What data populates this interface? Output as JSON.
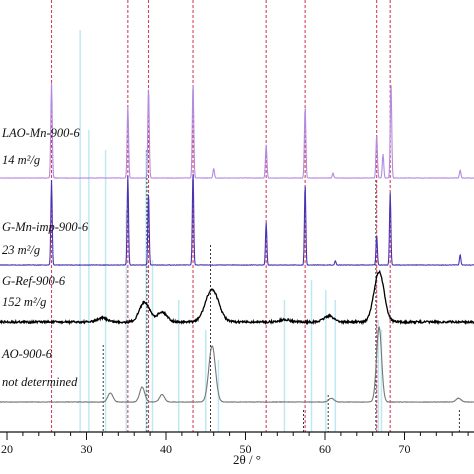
{
  "chart_data": {
    "type": "line",
    "xlabel": "2θ / °",
    "ylabel": "",
    "xlim": [
      20,
      80
    ],
    "x_ticks": [
      "20",
      "30",
      "40",
      "50",
      "60",
      "70"
    ],
    "grid": false,
    "colors": {
      "red_ref": "#d3415f",
      "cyan_ref": "#bfe9f2",
      "black_ref": "#222222",
      "laomn": "#b48ae0",
      "mnimp": "#4b32b4",
      "ref": "#000000",
      "lao": "#777777"
    },
    "reference_lines": {
      "red_dashed": [
        25.6,
        35.2,
        37.8,
        43.4,
        52.6,
        57.5,
        66.5,
        68.2
      ],
      "cyan": [
        29.2,
        30.3,
        32.4,
        35.0,
        37.5,
        38.3,
        41.6,
        45.0,
        46.6,
        54.9,
        58.3,
        60.1,
        61.3,
        66.7,
        67.1
      ],
      "black_dashed": [
        32.1,
        37.6,
        45.6,
        57.3,
        60.4,
        66.4,
        76.9
      ]
    },
    "series": [
      {
        "label_line1": "LAO-Mn-900-6",
        "label_line2": "14 m²/g",
        "peaks": [
          [
            25.6,
            1.0
          ],
          [
            35.2,
            0.75
          ],
          [
            37.8,
            0.95
          ],
          [
            43.4,
            1.0
          ],
          [
            46.0,
            0.1
          ],
          [
            52.6,
            0.35
          ],
          [
            57.5,
            0.75
          ],
          [
            61.0,
            0.05
          ],
          [
            66.5,
            0.45
          ],
          [
            67.3,
            0.25
          ],
          [
            68.3,
            1.0
          ],
          [
            77.0,
            0.08
          ]
        ]
      },
      {
        "label_line1": "G-Mn-imp-900-6",
        "label_line2": "23 m²/g",
        "peaks": [
          [
            25.6,
            1.0
          ],
          [
            35.2,
            1.05
          ],
          [
            37.8,
            0.85
          ],
          [
            43.4,
            1.1
          ],
          [
            52.6,
            0.5
          ],
          [
            57.5,
            0.95
          ],
          [
            61.3,
            0.05
          ],
          [
            66.5,
            0.35
          ],
          [
            68.2,
            0.85
          ],
          [
            77.0,
            0.12
          ]
        ]
      },
      {
        "label_line1": "G-Ref-900-6",
        "label_line2": "152 m²/g",
        "peaks": [
          [
            32.0,
            0.08
          ],
          [
            37.3,
            0.4
          ],
          [
            39.5,
            0.2
          ],
          [
            45.8,
            0.65
          ],
          [
            55.0,
            0.05
          ],
          [
            60.5,
            0.12
          ],
          [
            66.8,
            1.0
          ]
        ]
      },
      {
        "label_line1": "AO-900-6",
        "label_line2": "not determined",
        "peaks": [
          [
            33.0,
            0.12
          ],
          [
            37.0,
            0.2
          ],
          [
            39.5,
            0.1
          ],
          [
            45.8,
            0.75
          ],
          [
            60.8,
            0.05
          ],
          [
            66.8,
            1.0
          ],
          [
            76.8,
            0.05
          ]
        ]
      }
    ]
  }
}
